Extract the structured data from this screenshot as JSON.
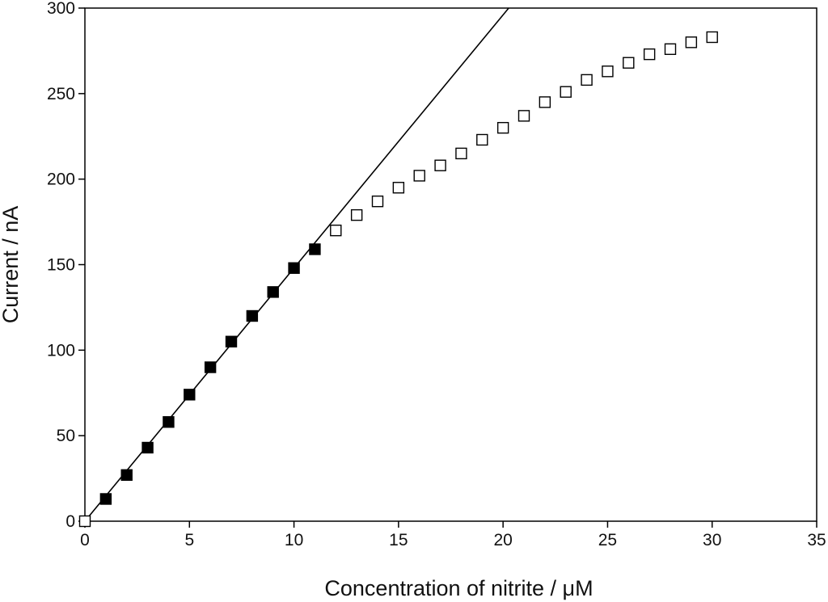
{
  "chart_data": {
    "type": "scatter",
    "title": "",
    "xlabel": "Concentration of nitrite / μM",
    "ylabel": "Current / nA",
    "xlim": [
      0,
      35
    ],
    "ylim": [
      0,
      300
    ],
    "x_ticks": [
      0,
      5,
      10,
      15,
      20,
      25,
      30,
      35
    ],
    "y_ticks": [
      0,
      50,
      100,
      150,
      200,
      250,
      300
    ],
    "x_tick_labels": [
      "0",
      "5",
      "10",
      "15",
      "20",
      "25",
      "30",
      "35"
    ],
    "y_tick_labels": [
      "0",
      "50",
      "100",
      "150",
      "200",
      "250",
      "300"
    ],
    "grid": false,
    "legend": "none",
    "series": [
      {
        "marker": "filled-square",
        "color": "#000000",
        "x": [
          1,
          2,
          3,
          4,
          5,
          6,
          7,
          8,
          9,
          10,
          11
        ],
        "y": [
          13,
          27,
          43,
          58,
          74,
          90,
          105,
          120,
          134,
          148,
          159
        ]
      },
      {
        "marker": "open-square",
        "color": "#000000",
        "x": [
          0,
          12,
          13,
          14,
          15,
          16,
          17,
          18,
          19,
          20,
          21,
          22,
          23,
          24,
          25,
          26,
          27,
          28,
          29,
          30
        ],
        "y": [
          0,
          170,
          179,
          187,
          195,
          202,
          208,
          215,
          223,
          230,
          237,
          245,
          251,
          258,
          263,
          268,
          273,
          276,
          280,
          283
        ]
      }
    ],
    "fit_line": {
      "type": "linear",
      "slope": 14.8,
      "intercept": 0,
      "x_range": [
        0,
        20.27
      ]
    }
  }
}
